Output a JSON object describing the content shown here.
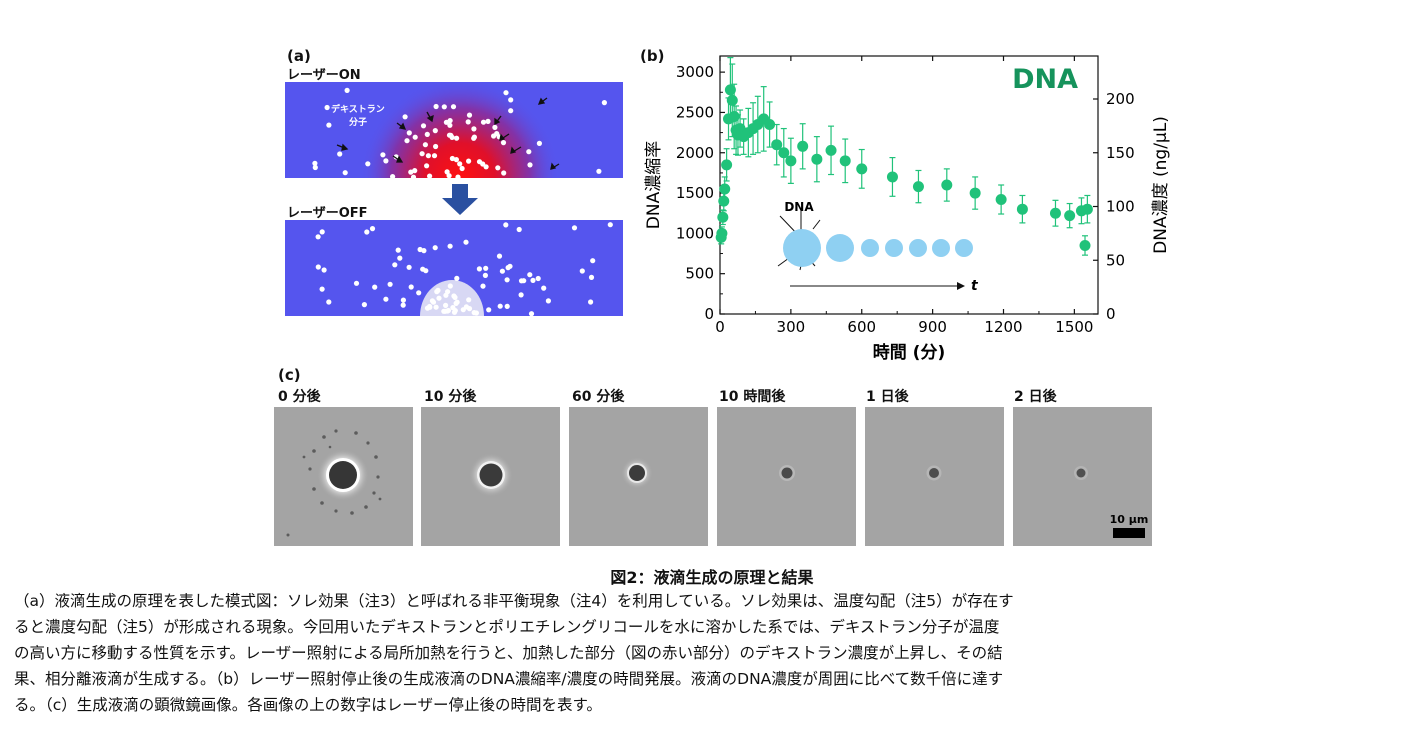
{
  "panel_a": {
    "label": "(a)",
    "on_label": "レーザーON",
    "off_label": "レーザーOFF",
    "molecule_label_line1": "デキストラン",
    "molecule_label_line2": "分子",
    "colors": {
      "channel": "#5555ee",
      "hot": "#e0102a",
      "arrow": "#2a50a0"
    }
  },
  "panel_b": {
    "label": "(b)"
  },
  "chart_data": {
    "type": "scatter",
    "title": "DNA",
    "xlabel": "時間 (分)",
    "ylabel": "DNA濃縮率",
    "ylabel_right": "DNA濃度 (ng/μL)",
    "xlim": [
      0,
      1600
    ],
    "ylim": [
      0,
      3200
    ],
    "ylim_right": [
      0,
      240
    ],
    "x_ticks": [
      0,
      300,
      600,
      900,
      1200,
      1500
    ],
    "y_ticks": [
      0,
      500,
      1000,
      1500,
      2000,
      2500,
      3000
    ],
    "y_ticks_right": [
      0,
      50,
      100,
      150,
      200
    ],
    "grid": false,
    "color": "#20c27a",
    "series": [
      {
        "x": [
          5,
          8,
          12,
          16,
          20,
          28,
          36,
          44,
          52,
          60,
          68,
          76,
          85,
          100,
          120,
          140,
          160,
          185,
          210,
          240,
          270,
          300,
          350,
          410,
          470,
          530,
          600,
          730,
          840,
          960,
          1080,
          1190,
          1280,
          1420,
          1480,
          1530,
          1545,
          1555
        ],
        "y": [
          950,
          1000,
          1200,
          1400,
          1550,
          1850,
          2420,
          2780,
          2650,
          2450,
          2280,
          2220,
          2300,
          2200,
          2250,
          2300,
          2350,
          2420,
          2350,
          2100,
          2000,
          1900,
          2080,
          1920,
          2030,
          1900,
          1800,
          1700,
          1580,
          1600,
          1500,
          1420,
          1300,
          1250,
          1220,
          1280,
          850,
          1300
        ],
        "error": [
          80,
          80,
          90,
          120,
          150,
          200,
          260,
          400,
          450,
          400,
          300,
          250,
          230,
          220,
          300,
          320,
          350,
          400,
          280,
          250,
          300,
          280,
          280,
          280,
          300,
          270,
          240,
          240,
          200,
          200,
          200,
          180,
          170,
          160,
          150,
          160,
          120,
          170
        ]
      }
    ],
    "inset": {
      "label": "DNA",
      "time_label": "t",
      "droplet_color": "#8fd0f2"
    }
  },
  "panel_c": {
    "label": "(c)",
    "images": [
      {
        "label": "0 分後"
      },
      {
        "label": "10 分後"
      },
      {
        "label": "60 分後"
      },
      {
        "label": "10 時間後"
      },
      {
        "label": "1 日後"
      },
      {
        "label": "2 日後"
      }
    ],
    "scale_bar": "10 μm"
  },
  "figure_title": "図2：液滴生成の原理と結果",
  "caption_lines": [
    "（a）液滴生成の原理を表した模式図：ソレ効果（注3）と呼ばれる非平衡現象（注4）を利用している。ソレ効果は、温度勾配（注5）が存在す",
    "ると濃度勾配（注5）が形成される現象。今回用いたデキストランとポリエチレングリコールを水に溶かした系では、デキストラン分子が温度",
    "の高い方に移動する性質を示す。レーザー照射による局所加熱を行うと、加熱した部分（図の赤い部分）のデキストラン濃度が上昇し、その結",
    "果、相分離液滴が生成する。（b）レーザー照射停止後の生成液滴のDNA濃縮率/濃度の時間発展。液滴のDNA濃度が周囲に比べて数千倍に達す",
    "る。（c）生成液滴の顕微鏡画像。各画像の上の数字はレーザー停止後の時間を表す。"
  ]
}
